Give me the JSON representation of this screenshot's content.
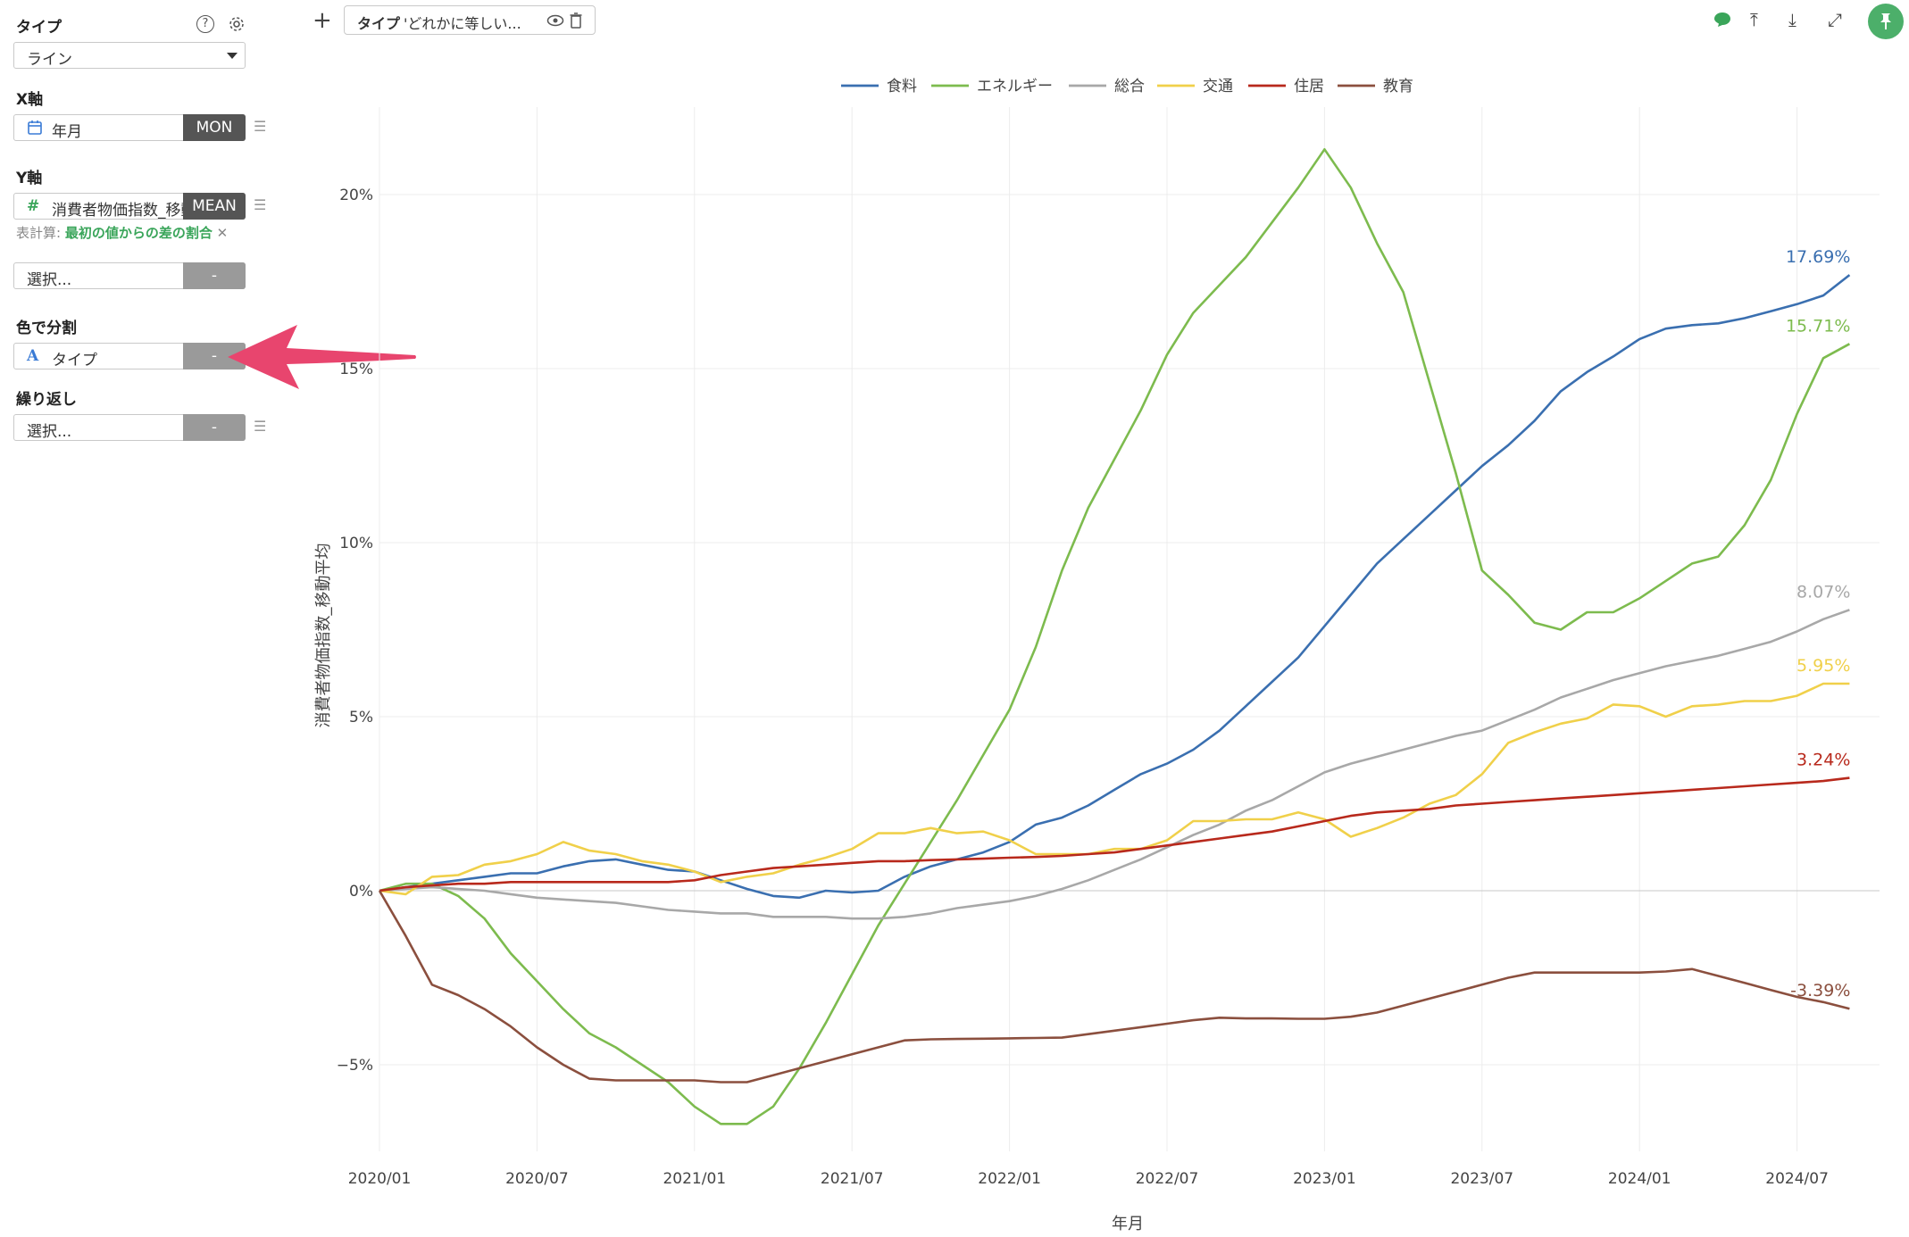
{
  "panel": {
    "type_label": "タイプ",
    "type_value": "ライン",
    "help_icon": "?",
    "x_axis_label": "X軸",
    "x_field": "年月",
    "x_tag": "MON",
    "y_axis_label": "Y軸",
    "y_field": "消費者物価指数_移動平均",
    "y_tag": "MEAN",
    "calc_prefix": "表計算:",
    "calc_value": "最初の値からの差の割合",
    "extra_placeholder": "選択...",
    "extra_tag": "-",
    "color_label": "色で分割",
    "color_field": "タイプ",
    "color_tag": "-",
    "repeat_label": "繰り返し",
    "repeat_placeholder": "選択...",
    "repeat_tag": "-"
  },
  "toolbar": {
    "add": "+",
    "filter_field": "タイプ",
    "filter_text": "'どれかに等しい...",
    "pin_icon": "pin-icon"
  },
  "colors": {
    "food": "#3a6fb0",
    "energy": "#7dbb4e",
    "total": "#a8a8a8",
    "transport": "#f0d04a",
    "housing": "#b8291c",
    "education": "#8b4f3e",
    "arrow": "#e8456e"
  },
  "chart_data": {
    "type": "line",
    "title": "",
    "xlabel": "年月",
    "ylabel": "消費者物価指数_移動平均",
    "x_ticks": [
      "2020/01",
      "2020/07",
      "2021/01",
      "2021/07",
      "2022/01",
      "2022/07",
      "2023/01",
      "2023/07",
      "2024/01",
      "2024/07"
    ],
    "y_ticks": [
      {
        "value": -5,
        "label": "−5%"
      },
      {
        "value": 0,
        "label": "0%"
      },
      {
        "value": 5,
        "label": "5%"
      },
      {
        "value": 10,
        "label": "10%"
      },
      {
        "value": 15,
        "label": "15%"
      },
      {
        "value": 20,
        "label": "20%"
      }
    ],
    "ylim": [
      -7.6,
      22.6
    ],
    "x_range": [
      "2020/01",
      "2024/09"
    ],
    "grid": true,
    "legend_position": "top-center",
    "series": [
      {
        "name": "食料",
        "color": "#3a6fb0",
        "end_label": "17.69%",
        "values": [
          0,
          0.1,
          0.2,
          0.3,
          0.4,
          0.5,
          0.5,
          0.7,
          0.85,
          0.9,
          0.75,
          0.6,
          0.55,
          0.3,
          0.05,
          -0.15,
          -0.2,
          0,
          -0.05,
          0,
          0.4,
          0.7,
          0.9,
          1.1,
          1.4,
          1.9,
          2.1,
          2.45,
          2.9,
          3.35,
          3.65,
          4.05,
          4.6,
          5.3,
          6.0,
          6.7,
          7.6,
          8.5,
          9.4,
          10.1,
          10.8,
          11.5,
          12.2,
          12.8,
          13.5,
          14.35,
          14.9,
          15.35,
          15.85,
          16.15,
          16.25,
          16.3,
          16.45,
          16.65,
          16.85,
          17.1,
          17.69
        ]
      },
      {
        "name": "エネルギー",
        "color": "#7dbb4e",
        "end_label": "15.71%",
        "values": [
          0,
          0.2,
          0.2,
          -0.15,
          -0.8,
          -1.8,
          -2.6,
          -3.4,
          -4.1,
          -4.5,
          -5.0,
          -5.5,
          -6.2,
          -6.7,
          -6.7,
          -6.2,
          -5.1,
          -3.8,
          -2.4,
          -1.0,
          0.2,
          1.4,
          2.6,
          3.9,
          5.2,
          7.0,
          9.2,
          11.0,
          12.4,
          13.8,
          15.4,
          16.6,
          17.4,
          18.2,
          19.2,
          20.2,
          21.3,
          20.2,
          18.6,
          17.2,
          14.6,
          12.0,
          9.2,
          8.5,
          7.7,
          7.5,
          8.0,
          8.0,
          8.4,
          8.9,
          9.4,
          9.6,
          10.5,
          11.8,
          13.7,
          15.3,
          15.71
        ]
      },
      {
        "name": "総合",
        "color": "#a8a8a8",
        "end_label": "8.07%",
        "values": [
          0,
          0.05,
          0.1,
          0.05,
          0,
          -0.1,
          -0.2,
          -0.25,
          -0.3,
          -0.35,
          -0.45,
          -0.55,
          -0.6,
          -0.65,
          -0.65,
          -0.75,
          -0.75,
          -0.75,
          -0.8,
          -0.8,
          -0.75,
          -0.65,
          -0.5,
          -0.4,
          -0.3,
          -0.15,
          0.05,
          0.3,
          0.6,
          0.9,
          1.25,
          1.6,
          1.9,
          2.3,
          2.6,
          3.0,
          3.4,
          3.65,
          3.85,
          4.05,
          4.25,
          4.45,
          4.6,
          4.9,
          5.2,
          5.55,
          5.8,
          6.05,
          6.25,
          6.45,
          6.6,
          6.75,
          6.95,
          7.15,
          7.45,
          7.8,
          8.07
        ]
      },
      {
        "name": "交通",
        "color": "#f0d04a",
        "end_label": "5.95%",
        "values": [
          0,
          -0.1,
          0.4,
          0.45,
          0.75,
          0.85,
          1.05,
          1.4,
          1.15,
          1.05,
          0.85,
          0.75,
          0.55,
          0.25,
          0.4,
          0.5,
          0.75,
          0.95,
          1.2,
          1.65,
          1.65,
          1.8,
          1.65,
          1.7,
          1.45,
          1.05,
          1.05,
          1.05,
          1.2,
          1.2,
          1.45,
          2.0,
          2.0,
          2.05,
          2.05,
          2.25,
          2.05,
          1.55,
          1.8,
          2.1,
          2.5,
          2.75,
          3.35,
          4.25,
          4.55,
          4.8,
          4.95,
          5.35,
          5.3,
          5.0,
          5.3,
          5.35,
          5.45,
          5.45,
          5.6,
          5.95,
          5.95
        ]
      },
      {
        "name": "住居",
        "color": "#b8291c",
        "end_label": "3.24%",
        "values": [
          0,
          0.1,
          0.15,
          0.2,
          0.2,
          0.25,
          0.25,
          0.25,
          0.25,
          0.25,
          0.25,
          0.25,
          0.3,
          0.45,
          0.55,
          0.65,
          0.7,
          0.75,
          0.8,
          0.85,
          0.85,
          0.88,
          0.9,
          0.92,
          0.95,
          0.97,
          1.0,
          1.05,
          1.1,
          1.2,
          1.3,
          1.4,
          1.5,
          1.6,
          1.7,
          1.85,
          2.0,
          2.15,
          2.25,
          2.3,
          2.35,
          2.45,
          2.5,
          2.55,
          2.6,
          2.65,
          2.7,
          2.75,
          2.8,
          2.85,
          2.9,
          2.95,
          3.0,
          3.05,
          3.1,
          3.15,
          3.24
        ]
      },
      {
        "name": "教育",
        "color": "#8b4f3e",
        "end_label": "-3.39%",
        "values": [
          0,
          -1.3,
          -2.7,
          -3.0,
          -3.4,
          -3.9,
          -4.5,
          -5.0,
          -5.4,
          -5.45,
          -5.45,
          -5.45,
          -5.45,
          -5.5,
          -5.5,
          -5.3,
          -5.1,
          -4.9,
          -4.7,
          -4.5,
          -4.3,
          -4.27,
          -4.26,
          -4.25,
          -4.24,
          -4.23,
          -4.22,
          -4.12,
          -4.02,
          -3.92,
          -3.82,
          -3.72,
          -3.65,
          -3.67,
          -3.67,
          -3.68,
          -3.68,
          -3.62,
          -3.5,
          -3.3,
          -3.1,
          -2.9,
          -2.7,
          -2.5,
          -2.35,
          -2.35,
          -2.35,
          -2.35,
          -2.35,
          -2.32,
          -2.25,
          -2.45,
          -2.65,
          -2.85,
          -3.05,
          -3.2,
          -3.39
        ]
      }
    ]
  }
}
